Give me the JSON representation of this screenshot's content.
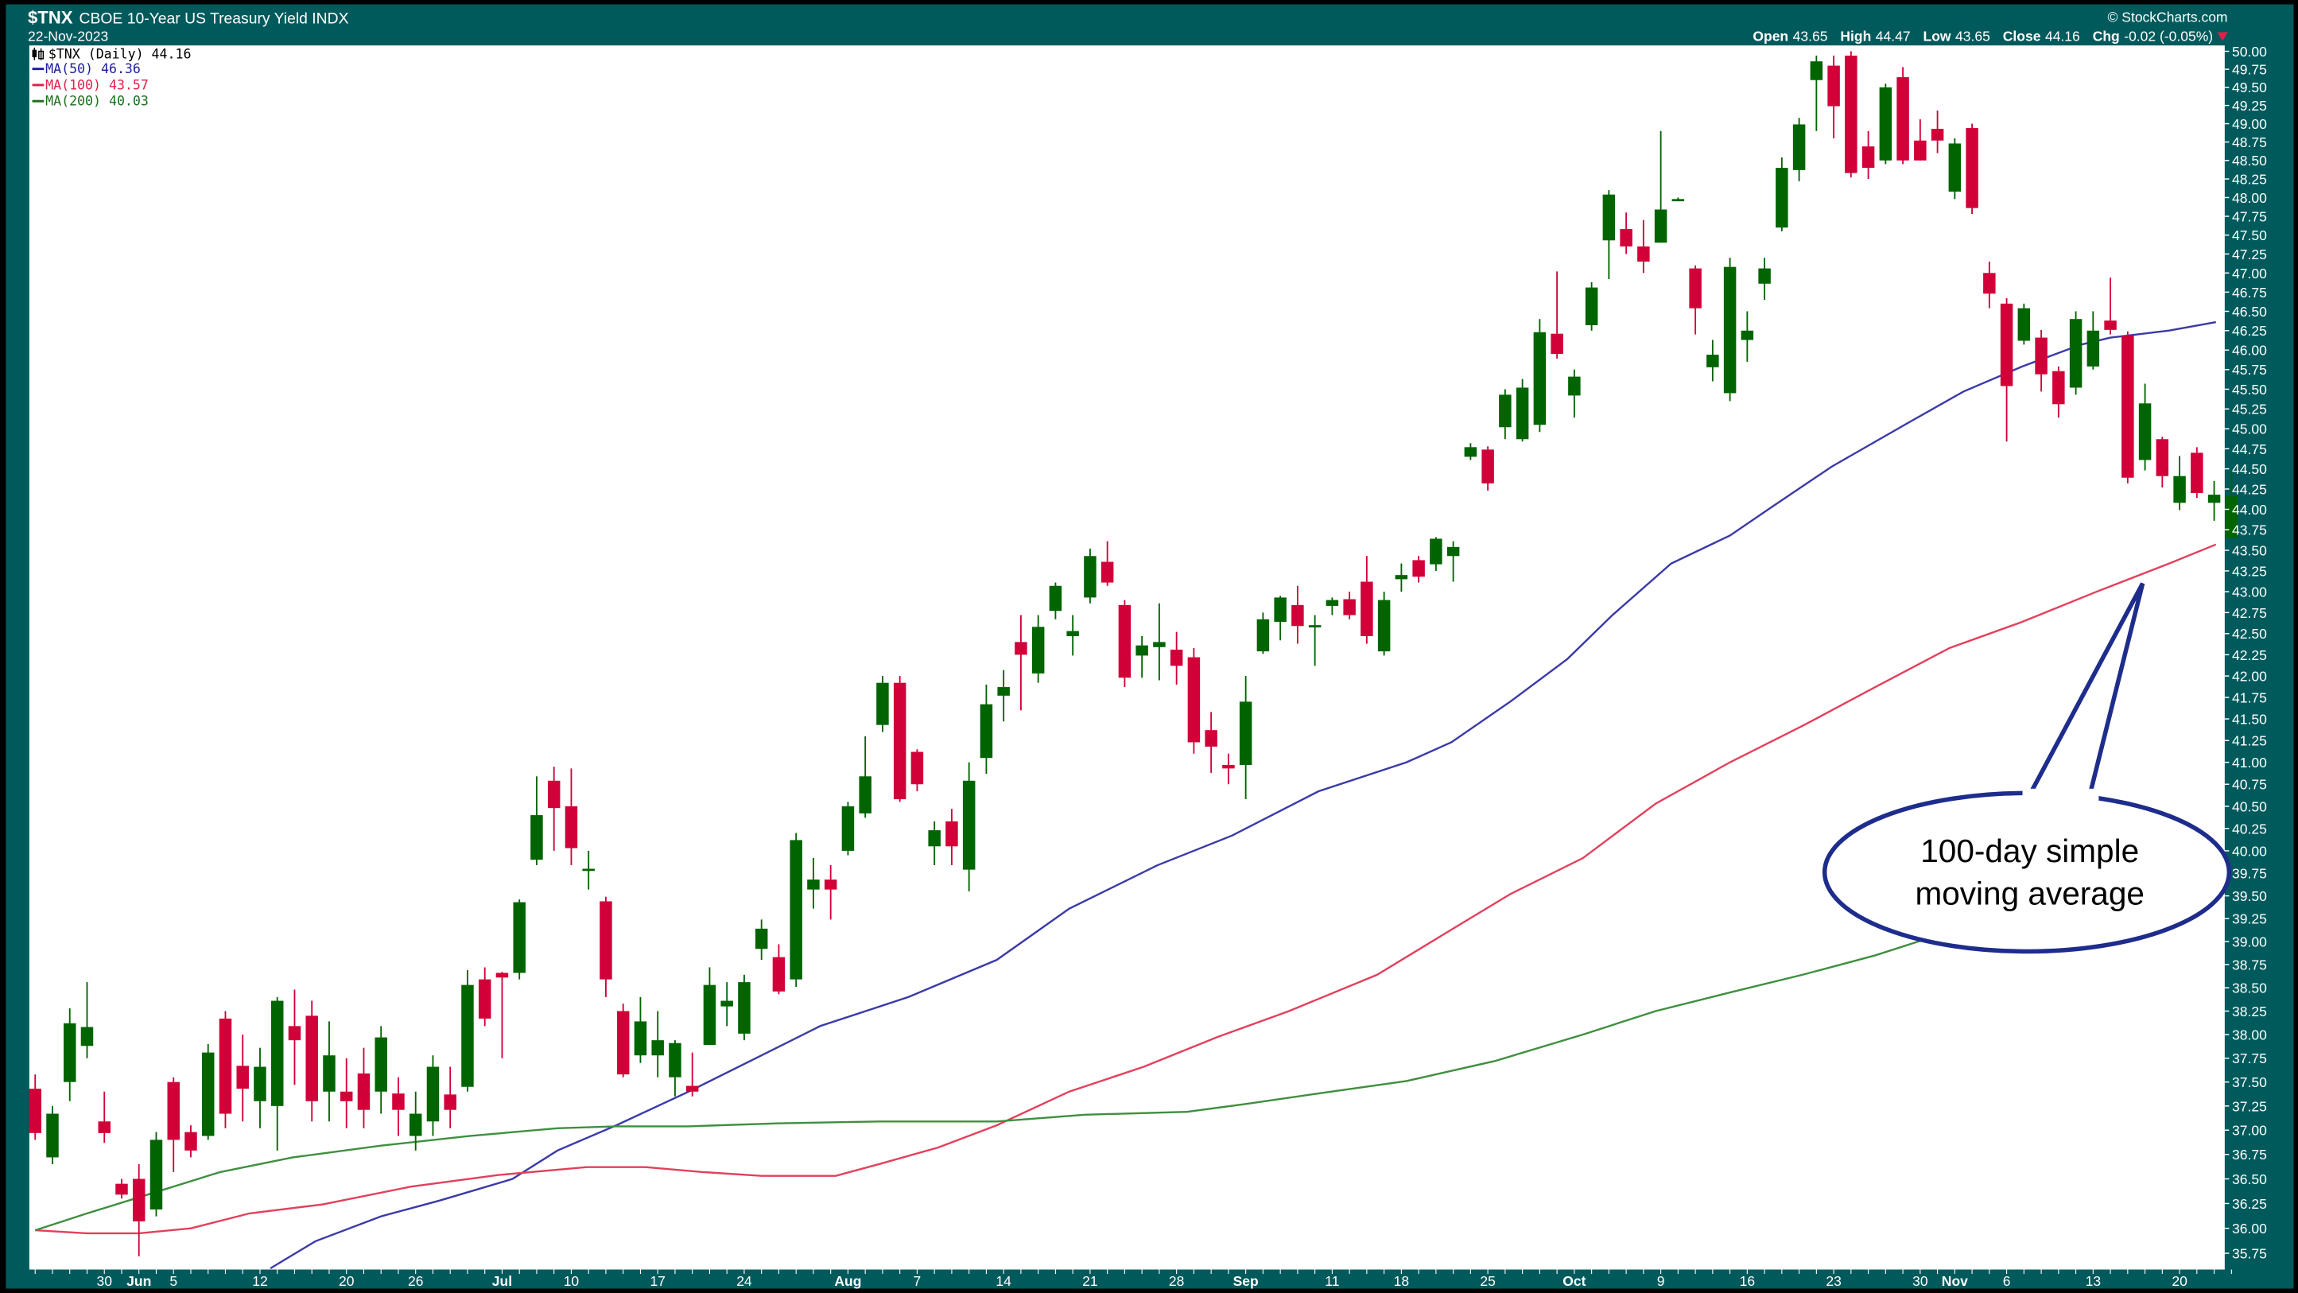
{
  "header": {
    "symbol": "$TNX",
    "name": "CBOE 10-Year US Treasury Yield INDX",
    "date": "22-Nov-2023",
    "copyright": "© StockCharts.com",
    "open_label": "Open",
    "open": "43.65",
    "high_label": "High",
    "high": "44.47",
    "low_label": "Low",
    "low": "43.65",
    "close_label": "Close",
    "close": "44.16",
    "chg_label": "Chg",
    "chg": "-0.02 (-0.05%)",
    "chg_direction": "down"
  },
  "legend": {
    "price": "$TNX (Daily) 44.16",
    "ma50": "MA(50) 46.36",
    "ma100": "MA(100) 43.57",
    "ma200": "MA(200) 40.03"
  },
  "annotation": {
    "line1": "100-day simple moving average",
    "line1a": "100-day simple",
    "line1b": "moving average"
  },
  "colors": {
    "background": "#005a5c",
    "up": "#006400",
    "down": "#d10038",
    "ma50": "#3a3aa8",
    "ma100": "#e2405c",
    "ma200": "#3f8f3f",
    "callout": "#1e2d8c"
  },
  "chart_data": {
    "type": "candlestick",
    "yscale": "log",
    "ylim": [
      35.75,
      50.0
    ],
    "grid": false,
    "legend": "top-left",
    "y_ticks": [
      "35.75",
      "36.00",
      "36.25",
      "36.50",
      "36.75",
      "37.00",
      "37.25",
      "37.50",
      "37.75",
      "38.00",
      "38.25",
      "38.50",
      "38.75",
      "39.00",
      "39.25",
      "39.50",
      "39.75",
      "40.00",
      "40.25",
      "40.50",
      "40.75",
      "41.00",
      "41.25",
      "41.50",
      "41.75",
      "42.00",
      "42.25",
      "42.50",
      "42.75",
      "43.00",
      "43.25",
      "43.50",
      "43.75",
      "44.00",
      "44.25",
      "44.50",
      "44.75",
      "45.00",
      "45.25",
      "45.50",
      "45.75",
      "46.00",
      "46.25",
      "46.50",
      "46.75",
      "47.00",
      "47.25",
      "47.50",
      "47.75",
      "48.00",
      "48.25",
      "48.50",
      "48.75",
      "49.00",
      "49.25",
      "49.50",
      "49.75",
      "50.00"
    ],
    "x_ticks": [
      {
        "label": "30",
        "bar": 4
      },
      {
        "label": "Jun",
        "bar": 6
      },
      {
        "label": "5",
        "bar": 8
      },
      {
        "label": "12",
        "bar": 13
      },
      {
        "label": "20",
        "bar": 18
      },
      {
        "label": "26",
        "bar": 22
      },
      {
        "label": "Jul",
        "bar": 27
      },
      {
        "label": "10",
        "bar": 31
      },
      {
        "label": "17",
        "bar": 36
      },
      {
        "label": "24",
        "bar": 41
      },
      {
        "label": "Aug",
        "bar": 47
      },
      {
        "label": "7",
        "bar": 51
      },
      {
        "label": "14",
        "bar": 56
      },
      {
        "label": "21",
        "bar": 61
      },
      {
        "label": "28",
        "bar": 66
      },
      {
        "label": "Sep",
        "bar": 70
      },
      {
        "label": "11",
        "bar": 75
      },
      {
        "label": "18",
        "bar": 79
      },
      {
        "label": "25",
        "bar": 84
      },
      {
        "label": "Oct",
        "bar": 89
      },
      {
        "label": "9",
        "bar": 94
      },
      {
        "label": "16",
        "bar": 99
      },
      {
        "label": "23",
        "bar": 104
      },
      {
        "label": "30",
        "bar": 109
      },
      {
        "label": "Nov",
        "bar": 111
      },
      {
        "label": "6",
        "bar": 114
      },
      {
        "label": "13",
        "bar": 119
      },
      {
        "label": "20",
        "bar": 124
      }
    ],
    "ohlc": [
      [
        37.43,
        37.58,
        36.9,
        36.97
      ],
      [
        36.72,
        37.25,
        36.65,
        37.17
      ],
      [
        37.5,
        38.28,
        37.3,
        38.12
      ],
      [
        37.88,
        38.56,
        37.75,
        38.08
      ],
      [
        37.09,
        37.4,
        36.87,
        36.97
      ],
      [
        36.45,
        36.5,
        36.3,
        36.34
      ],
      [
        36.5,
        36.65,
        35.72,
        36.07
      ],
      [
        36.19,
        36.98,
        36.12,
        36.9
      ],
      [
        37.5,
        37.55,
        36.57,
        36.9
      ],
      [
        36.98,
        37.05,
        36.72,
        36.79
      ],
      [
        36.94,
        37.9,
        36.9,
        37.81
      ],
      [
        38.17,
        38.25,
        37.02,
        37.17
      ],
      [
        37.67,
        38.0,
        37.09,
        37.43
      ],
      [
        37.3,
        37.86,
        37.02,
        37.66
      ],
      [
        37.25,
        38.4,
        36.79,
        38.36
      ],
      [
        38.09,
        38.48,
        37.47,
        37.94
      ],
      [
        38.2,
        38.36,
        37.09,
        37.3
      ],
      [
        37.4,
        38.14,
        37.09,
        37.78
      ],
      [
        37.4,
        37.75,
        37.02,
        37.3
      ],
      [
        37.59,
        37.86,
        37.02,
        37.21
      ],
      [
        37.4,
        38.09,
        37.17,
        37.97
      ],
      [
        37.38,
        37.55,
        36.94,
        37.21
      ],
      [
        36.94,
        37.4,
        36.79,
        37.17
      ],
      [
        37.09,
        37.78,
        36.94,
        37.66
      ],
      [
        37.37,
        37.66,
        37.02,
        37.21
      ],
      [
        37.45,
        38.69,
        37.4,
        38.53
      ],
      [
        38.59,
        38.72,
        38.09,
        38.17
      ],
      [
        38.66,
        38.67,
        37.75,
        38.61
      ],
      [
        38.66,
        39.46,
        38.59,
        39.43
      ],
      [
        39.9,
        40.84,
        39.84,
        40.4
      ],
      [
        40.79,
        40.95,
        40.0,
        40.48
      ],
      [
        40.5,
        40.93,
        39.84,
        40.03
      ],
      [
        39.79,
        40.0,
        39.57,
        39.8
      ],
      [
        39.44,
        39.49,
        38.4,
        38.59
      ],
      [
        38.25,
        38.33,
        37.55,
        37.58
      ],
      [
        37.78,
        38.4,
        37.7,
        38.14
      ],
      [
        37.78,
        38.25,
        37.55,
        37.94
      ],
      [
        37.55,
        37.94,
        37.35,
        37.91
      ],
      [
        37.46,
        37.81,
        37.35,
        37.4
      ],
      [
        37.89,
        38.72,
        37.89,
        38.53
      ],
      [
        38.3,
        38.56,
        38.09,
        38.36
      ],
      [
        38.01,
        38.64,
        37.94,
        38.56
      ],
      [
        38.92,
        39.24,
        38.8,
        39.14
      ],
      [
        38.83,
        38.97,
        38.43,
        38.46
      ],
      [
        38.59,
        40.2,
        38.51,
        40.12
      ],
      [
        39.57,
        39.92,
        39.36,
        39.68
      ],
      [
        39.68,
        39.84,
        39.24,
        39.57
      ],
      [
        40.0,
        40.55,
        39.95,
        40.5
      ],
      [
        40.42,
        41.3,
        40.37,
        40.84
      ],
      [
        41.43,
        42.0,
        41.35,
        41.92
      ],
      [
        41.92,
        42.0,
        40.55,
        40.58
      ],
      [
        41.12,
        41.15,
        40.67,
        40.75
      ],
      [
        40.05,
        40.33,
        39.84,
        40.23
      ],
      [
        40.33,
        40.47,
        39.84,
        40.05
      ],
      [
        39.79,
        41.0,
        39.55,
        40.79
      ],
      [
        41.05,
        41.9,
        40.87,
        41.67
      ],
      [
        41.77,
        42.07,
        41.47,
        41.87
      ],
      [
        42.4,
        42.72,
        41.6,
        42.25
      ],
      [
        42.03,
        42.72,
        41.92,
        42.58
      ],
      [
        42.77,
        43.11,
        42.67,
        43.07
      ],
      [
        42.47,
        42.72,
        42.24,
        42.53
      ],
      [
        42.93,
        43.52,
        42.86,
        43.43
      ],
      [
        43.36,
        43.61,
        43.07,
        43.11
      ],
      [
        42.84,
        42.9,
        41.87,
        41.98
      ],
      [
        42.24,
        42.47,
        41.98,
        42.36
      ],
      [
        42.34,
        42.86,
        41.95,
        42.4
      ],
      [
        42.31,
        42.52,
        41.9,
        42.12
      ],
      [
        42.22,
        42.33,
        41.1,
        41.23
      ],
      [
        41.37,
        41.58,
        40.88,
        41.18
      ],
      [
        40.97,
        41.1,
        40.75,
        40.93
      ],
      [
        40.97,
        42.0,
        40.58,
        41.7
      ],
      [
        42.29,
        42.75,
        42.26,
        42.67
      ],
      [
        42.64,
        42.95,
        42.42,
        42.93
      ],
      [
        42.84,
        43.07,
        42.38,
        42.59
      ],
      [
        42.59,
        42.72,
        42.12,
        42.6
      ],
      [
        42.83,
        42.93,
        42.72,
        42.9
      ],
      [
        42.91,
        43.0,
        42.67,
        42.72
      ],
      [
        43.12,
        43.43,
        42.38,
        42.47
      ],
      [
        42.29,
        43.0,
        42.24,
        42.9
      ],
      [
        43.15,
        43.34,
        43.0,
        43.2
      ],
      [
        43.38,
        43.43,
        43.11,
        43.18
      ],
      [
        43.33,
        43.66,
        43.25,
        43.64
      ],
      [
        43.43,
        43.61,
        43.12,
        43.54
      ],
      [
        44.65,
        44.82,
        44.61,
        44.77
      ],
      [
        44.74,
        44.78,
        44.23,
        44.32
      ],
      [
        45.02,
        45.5,
        44.87,
        45.43
      ],
      [
        44.87,
        45.63,
        44.84,
        45.52
      ],
      [
        45.05,
        46.4,
        44.96,
        46.23
      ],
      [
        46.21,
        47.02,
        45.89,
        45.95
      ],
      [
        45.42,
        45.75,
        45.14,
        45.66
      ],
      [
        46.32,
        46.88,
        46.25,
        46.81
      ],
      [
        47.43,
        48.1,
        46.92,
        48.04
      ],
      [
        47.58,
        47.8,
        47.25,
        47.35
      ],
      [
        47.35,
        47.7,
        47.0,
        47.15
      ],
      [
        47.4,
        48.9,
        47.4,
        47.84
      ],
      [
        47.97,
        48.0,
        47.95,
        47.98
      ],
      [
        47.06,
        47.1,
        46.2,
        46.54
      ],
      [
        45.78,
        46.13,
        45.6,
        45.94
      ],
      [
        45.45,
        47.2,
        45.35,
        47.08
      ],
      [
        46.13,
        46.5,
        45.85,
        46.25
      ],
      [
        46.86,
        47.2,
        46.65,
        47.06
      ],
      [
        47.6,
        48.54,
        47.55,
        48.4
      ],
      [
        48.37,
        49.08,
        48.22,
        48.99
      ],
      [
        49.6,
        49.94,
        48.9,
        49.86
      ],
      [
        49.8,
        49.94,
        48.8,
        49.24
      ],
      [
        49.94,
        50.0,
        48.27,
        48.33
      ],
      [
        48.69,
        48.9,
        48.25,
        48.4
      ],
      [
        48.5,
        49.55,
        48.45,
        49.5
      ],
      [
        49.64,
        49.78,
        48.45,
        48.5
      ],
      [
        48.77,
        49.06,
        48.5,
        48.5
      ],
      [
        48.93,
        49.18,
        48.6,
        48.77
      ],
      [
        48.08,
        48.8,
        47.98,
        48.73
      ],
      [
        48.94,
        49.0,
        47.78,
        47.86
      ],
      [
        47.0,
        47.15,
        46.54,
        46.73
      ],
      [
        46.6,
        46.67,
        44.84,
        45.54
      ],
      [
        46.12,
        46.6,
        46.07,
        46.54
      ],
      [
        46.16,
        46.26,
        45.47,
        45.69
      ],
      [
        45.73,
        45.79,
        45.14,
        45.31
      ],
      [
        45.52,
        46.5,
        45.43,
        46.4
      ],
      [
        45.79,
        46.5,
        45.75,
        46.25
      ],
      [
        46.38,
        46.94,
        46.2,
        46.26
      ],
      [
        46.19,
        46.24,
        44.32,
        44.39
      ],
      [
        44.61,
        45.57,
        44.48,
        45.32
      ],
      [
        44.87,
        44.9,
        44.27,
        44.41
      ],
      [
        44.08,
        44.66,
        43.99,
        44.41
      ],
      [
        44.7,
        44.77,
        44.14,
        44.2
      ],
      [
        44.08,
        44.35,
        43.86,
        44.18
      ],
      [
        43.65,
        44.47,
        43.65,
        44.16
      ]
    ],
    "series": [
      {
        "name": "MA(50)",
        "color_key": "ma50",
        "points": [
          [
            13.6,
            35.6
          ],
          [
            16.2,
            35.87
          ],
          [
            20,
            36.12
          ],
          [
            23.4,
            36.28
          ],
          [
            27.6,
            36.5
          ],
          [
            30.2,
            36.79
          ],
          [
            33.6,
            37.05
          ],
          [
            37.8,
            37.4
          ],
          [
            42,
            37.78
          ],
          [
            45.4,
            38.09
          ],
          [
            50.5,
            38.4
          ],
          [
            55.6,
            38.8
          ],
          [
            59.8,
            39.36
          ],
          [
            64.9,
            39.84
          ],
          [
            69.2,
            40.17
          ],
          [
            74.2,
            40.67
          ],
          [
            79.3,
            41.0
          ],
          [
            81.9,
            41.23
          ],
          [
            85.3,
            41.7
          ],
          [
            88.6,
            42.2
          ],
          [
            91.2,
            42.72
          ],
          [
            94.6,
            43.34
          ],
          [
            98,
            43.68
          ],
          [
            100.5,
            44.04
          ],
          [
            103.9,
            44.53
          ],
          [
            108.1,
            45.05
          ],
          [
            111.5,
            45.47
          ],
          [
            114.9,
            45.79
          ],
          [
            118.3,
            46.07
          ],
          [
            120,
            46.16
          ],
          [
            123.4,
            46.25
          ],
          [
            126.1,
            46.36
          ]
        ]
      },
      {
        "name": "MA(100)",
        "color_key": "ma100",
        "points": [
          [
            0,
            35.98
          ],
          [
            3,
            35.95
          ],
          [
            6,
            35.95
          ],
          [
            9,
            36.0
          ],
          [
            12.4,
            36.15
          ],
          [
            16.6,
            36.24
          ],
          [
            21.7,
            36.42
          ],
          [
            26.8,
            36.54
          ],
          [
            31.9,
            36.62
          ],
          [
            35.3,
            36.62
          ],
          [
            38.6,
            36.57
          ],
          [
            42,
            36.53
          ],
          [
            46.3,
            36.53
          ],
          [
            48.8,
            36.65
          ],
          [
            52.2,
            36.82
          ],
          [
            55.6,
            37.05
          ],
          [
            59.8,
            37.4
          ],
          [
            64.1,
            37.66
          ],
          [
            68.3,
            37.97
          ],
          [
            72.5,
            38.25
          ],
          [
            77.6,
            38.64
          ],
          [
            81.9,
            39.13
          ],
          [
            85.3,
            39.52
          ],
          [
            89.5,
            39.92
          ],
          [
            93.7,
            40.53
          ],
          [
            98,
            41.0
          ],
          [
            102.2,
            41.42
          ],
          [
            106.4,
            41.87
          ],
          [
            110.7,
            42.33
          ],
          [
            114.9,
            42.64
          ],
          [
            119.2,
            43.0
          ],
          [
            123.4,
            43.34
          ],
          [
            126.1,
            43.57
          ]
        ]
      },
      {
        "name": "MA(200)",
        "color_key": "ma200",
        "points": [
          [
            0,
            35.98
          ],
          [
            3,
            36.15
          ],
          [
            6.5,
            36.34
          ],
          [
            10.7,
            36.57
          ],
          [
            14.9,
            36.72
          ],
          [
            20,
            36.84
          ],
          [
            25.1,
            36.94
          ],
          [
            30.2,
            37.02
          ],
          [
            33.6,
            37.04
          ],
          [
            37.8,
            37.04
          ],
          [
            42.9,
            37.07
          ],
          [
            48.8,
            37.09
          ],
          [
            55.6,
            37.09
          ],
          [
            60.7,
            37.16
          ],
          [
            66.6,
            37.19
          ],
          [
            70,
            37.27
          ],
          [
            74.2,
            37.38
          ],
          [
            79.3,
            37.51
          ],
          [
            84.4,
            37.72
          ],
          [
            89.5,
            38.0
          ],
          [
            93.7,
            38.25
          ],
          [
            98,
            38.45
          ],
          [
            102.2,
            38.64
          ],
          [
            106.4,
            38.85
          ],
          [
            110.7,
            39.11
          ],
          [
            114.9,
            39.36
          ],
          [
            119.2,
            39.6
          ],
          [
            123.4,
            39.84
          ],
          [
            126.1,
            40.03
          ]
        ]
      }
    ]
  }
}
